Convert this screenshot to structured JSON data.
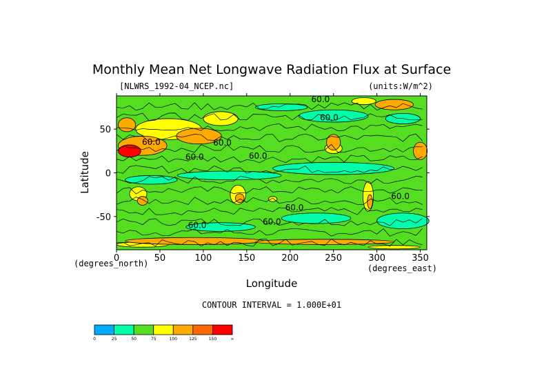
{
  "chart_data": {
    "type": "heatmap",
    "title": "Monthly Mean Net Longwave Radiation Flux at Surface",
    "file_label": "[NLWRS_1992-04_NCEP.nc]",
    "units_label": "(units:W/m^2)",
    "xlabel": "Longitude",
    "ylabel": "Latitude",
    "x_unit_label": "(degrees_east)",
    "y_unit_label": "(degrees_north)",
    "contour_interval_label": "CONTOUR INTERVAL = 1.000E+01",
    "xlim": [
      0,
      357.5
    ],
    "ylim": [
      -88,
      88
    ],
    "x_ticks": [
      0,
      50,
      100,
      150,
      200,
      250,
      300,
      350
    ],
    "y_ticks": [
      -50,
      0,
      50
    ],
    "contour_labels": [
      {
        "text": "60.0",
        "lon": 235,
        "lat": 81
      },
      {
        "text": "60.0",
        "lon": 245,
        "lat": 60
      },
      {
        "text": "60.0",
        "lon": 122,
        "lat": 31
      },
      {
        "text": "60.0",
        "lon": 90,
        "lat": 15
      },
      {
        "text": "60.0",
        "lon": 163,
        "lat": 16
      },
      {
        "text": "60.0",
        "lon": 327,
        "lat": -30
      },
      {
        "text": "60.0",
        "lon": 205,
        "lat": -43
      },
      {
        "text": "60.0",
        "lon": 179,
        "lat": -59
      },
      {
        "text": "60.0",
        "lon": 93,
        "lat": -63
      },
      {
        "text": "60.0",
        "lon": 40,
        "lat": 32
      }
    ],
    "colorbar": {
      "levels": [
        "0",
        "25",
        "50",
        "75",
        "100",
        "125",
        "150",
        "∞"
      ],
      "colors": [
        "#00aaff",
        "#00ffaa",
        "#55dd22",
        "#ffff00",
        "#ffaa00",
        "#ff6600",
        "#ff0000"
      ]
    },
    "field_regions": [
      {
        "level": "orange",
        "lon": 30,
        "lat": 31,
        "rlon": 28,
        "rlat": 11
      },
      {
        "level": "red",
        "lon": 15,
        "lat": 25,
        "rlon": 13,
        "rlat": 7
      },
      {
        "level": "orange",
        "lon": 95,
        "lat": 42,
        "rlon": 26,
        "rlat": 9
      },
      {
        "level": "yellow",
        "lon": 60,
        "lat": 50,
        "rlon": 38,
        "rlat": 12
      },
      {
        "level": "orange",
        "lon": 12,
        "lat": 55,
        "rlon": 10,
        "rlat": 8
      },
      {
        "level": "yellow",
        "lon": 120,
        "lat": 62,
        "rlon": 20,
        "rlat": 8
      },
      {
        "level": "orange",
        "lon": 250,
        "lat": 35,
        "rlon": 8,
        "rlat": 9
      },
      {
        "level": "yellow",
        "lon": 250,
        "lat": 28,
        "rlon": 10,
        "rlat": 6
      },
      {
        "level": "orange",
        "lon": 350,
        "lat": 25,
        "rlon": 8,
        "rlat": 10
      },
      {
        "level": "orange",
        "lon": 320,
        "lat": 78,
        "rlon": 22,
        "rlat": 6
      },
      {
        "level": "yellow",
        "lon": 285,
        "lat": 82,
        "rlon": 14,
        "rlat": 4
      },
      {
        "level": "yellow",
        "lon": 25,
        "lat": -24,
        "rlon": 10,
        "rlat": 8
      },
      {
        "level": "orange",
        "lon": 30,
        "lat": -32,
        "rlon": 6,
        "rlat": 5
      },
      {
        "level": "yellow",
        "lon": 140,
        "lat": -25,
        "rlon": 9,
        "rlat": 11
      },
      {
        "level": "orange",
        "lon": 142,
        "lat": -29,
        "rlon": 5,
        "rlat": 5
      },
      {
        "level": "yellow",
        "lon": 290,
        "lat": -27,
        "rlon": 6,
        "rlat": 17
      },
      {
        "level": "orange",
        "lon": 292,
        "lat": -33,
        "rlon": 3,
        "rlat": 8
      },
      {
        "level": "yellow",
        "lon": 180,
        "lat": -30,
        "rlon": 5,
        "rlat": 3
      },
      {
        "level": "cyan",
        "lon": 250,
        "lat": 5,
        "rlon": 70,
        "rlat": 7
      },
      {
        "level": "cyan",
        "lon": 130,
        "lat": -3,
        "rlon": 60,
        "rlat": 5
      },
      {
        "level": "cyan",
        "lon": 40,
        "lat": -8,
        "rlon": 30,
        "rlat": 5
      },
      {
        "level": "cyan",
        "lon": 330,
        "lat": -55,
        "rlon": 30,
        "rlat": 9
      },
      {
        "level": "cyan",
        "lon": 230,
        "lat": -52,
        "rlon": 40,
        "rlat": 6
      },
      {
        "level": "cyan",
        "lon": 120,
        "lat": -62,
        "rlon": 40,
        "rlat": 5
      },
      {
        "level": "cyan",
        "lon": 250,
        "lat": 65,
        "rlon": 40,
        "rlat": 7
      },
      {
        "level": "cyan",
        "lon": 190,
        "lat": 75,
        "rlon": 30,
        "rlat": 4
      },
      {
        "level": "cyan",
        "lon": 330,
        "lat": 62,
        "rlon": 20,
        "rlat": 6
      },
      {
        "level": "orange",
        "lon": 90,
        "lat": -78,
        "rlon": 80,
        "rlat": 4
      },
      {
        "level": "orange",
        "lon": 240,
        "lat": -79,
        "rlon": 80,
        "rlat": 3
      },
      {
        "level": "yellow",
        "lon": 30,
        "lat": -82,
        "rlon": 30,
        "rlat": 3
      },
      {
        "level": "yellow",
        "lon": 320,
        "lat": -85,
        "rlon": 30,
        "rlat": 2
      }
    ]
  }
}
